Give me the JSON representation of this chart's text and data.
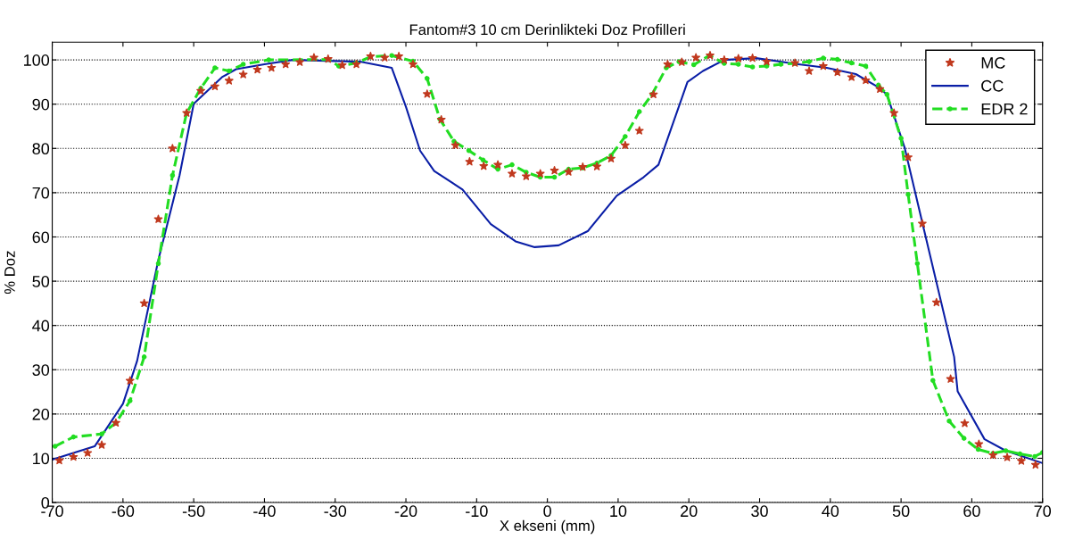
{
  "chart_data": {
    "type": "line",
    "title": "Fantom#3 10 cm Derinlikteki Doz Profilleri",
    "xlabel": "X ekseni (mm)",
    "ylabel": "% Doz",
    "xlim": [
      -70,
      70
    ],
    "ylim": [
      0,
      104
    ],
    "xticks": [
      -70,
      -60,
      -50,
      -40,
      -30,
      -20,
      -10,
      0,
      10,
      20,
      30,
      40,
      50,
      60,
      70
    ],
    "yticks": [
      0,
      10,
      20,
      30,
      40,
      50,
      60,
      70,
      80,
      90,
      100
    ],
    "grid": "y",
    "legend": "top right",
    "series": [
      {
        "name": "MC",
        "type": "scatter",
        "marker": "star",
        "line_style": "none",
        "color": "#c0391e",
        "x": [
          -69,
          -67,
          -65,
          -63,
          -61,
          -59,
          -57,
          -55,
          -53,
          -51,
          -49,
          -47,
          -45,
          -43,
          -41,
          -39,
          -37,
          -35,
          -33,
          -31,
          -29,
          -27,
          -25,
          -23,
          -21,
          -19,
          -17,
          -15,
          -13,
          -11,
          -9,
          -7,
          -5,
          -3,
          -1,
          1,
          3,
          5,
          7,
          9,
          11,
          13,
          15,
          17,
          19,
          21,
          23,
          25,
          27,
          29,
          31,
          35,
          37,
          39,
          41,
          43,
          45,
          47,
          49,
          51,
          53,
          55,
          57,
          59,
          61,
          63,
          65,
          67,
          69
        ],
        "values": [
          9.5,
          10.3,
          11.2,
          13,
          18,
          27.5,
          45,
          64,
          80,
          88,
          93,
          94,
          95.3,
          96.7,
          97.8,
          98.2,
          99,
          99.5,
          100.5,
          100.2,
          98.8,
          99,
          100.8,
          100.5,
          100.8,
          99,
          92.3,
          86.5,
          80.7,
          77,
          76,
          76.3,
          74.3,
          73.7,
          74.3,
          75,
          74.7,
          75.8,
          75.9,
          77.7,
          80.7,
          84,
          92.2,
          99,
          99.5,
          100.5,
          101,
          100,
          100.3,
          100.4,
          99.6,
          99.3,
          97.5,
          98.6,
          97.2,
          96.1,
          95.4,
          93.4,
          88,
          78,
          63,
          45.2,
          27.9,
          17.9,
          13.2,
          10.7,
          10.2,
          9.4,
          8.5
        ]
      },
      {
        "name": "CC",
        "marker": "none",
        "line_style": "solid",
        "color": "#0a1ea6",
        "x": [
          -70,
          -64,
          -60,
          -58,
          -55,
          -52,
          -50,
          -46,
          -44,
          -40,
          -36,
          -26.5,
          -22,
          -20,
          -18,
          -16,
          -12,
          -8,
          -4.5,
          -1.8,
          1.6,
          5.7,
          9.8,
          13.6,
          15.7,
          19.8,
          22,
          25,
          29.5,
          35.5,
          39.5,
          43.6,
          46.6,
          48,
          50.5,
          53.2,
          57.5,
          58,
          61.8,
          64.8,
          70
        ],
        "values": [
          9.7,
          12.7,
          22.3,
          32,
          54.8,
          73.9,
          90.1,
          96.1,
          97.9,
          99,
          100,
          99.6,
          98.2,
          89.4,
          79.5,
          74.9,
          70.7,
          62.9,
          59,
          57.7,
          58.1,
          61.3,
          69.3,
          73.5,
          76.3,
          95,
          97.5,
          100,
          100.4,
          99,
          98.2,
          96.8,
          94,
          92.2,
          80.2,
          61.9,
          32.9,
          25.1,
          14.3,
          11.7,
          8.9
        ]
      },
      {
        "name": "EDR 2",
        "marker": "circle",
        "line_style": "dashed",
        "color": "#22dd22",
        "x": [
          -69.6,
          -67,
          -63,
          -61,
          -59,
          -57,
          -55,
          -53,
          -51,
          -49,
          -47,
          -45,
          -43,
          -39.4,
          -31,
          -29.5,
          -27,
          -25,
          -22,
          -19,
          -17,
          -15.2,
          -13.2,
          -11.1,
          -9.1,
          -7,
          -5,
          -3,
          -1,
          1,
          3,
          5,
          7,
          9,
          11,
          13,
          14.8,
          16.8,
          18.6,
          20.7,
          22.9,
          25,
          27,
          29,
          31,
          33,
          35,
          37,
          39,
          41,
          43,
          45,
          46.8,
          48,
          50,
          51,
          52.3,
          54.5,
          56.8,
          58.9,
          60.9,
          63,
          64.8,
          66.8,
          68.9,
          70
        ],
        "values": [
          12.7,
          14.8,
          15.5,
          18,
          23,
          32.9,
          54,
          73.9,
          88,
          93.6,
          98.2,
          97.5,
          99,
          100,
          100.1,
          98.6,
          99.3,
          100.7,
          101,
          99.7,
          95.8,
          86.6,
          81.6,
          79.5,
          77.4,
          75.3,
          76.3,
          74.6,
          73.5,
          73.5,
          75.3,
          75.6,
          76.7,
          78.4,
          82.7,
          88.3,
          92.2,
          98.2,
          99.6,
          98.9,
          101,
          99.2,
          99,
          98.4,
          98.6,
          99,
          99.2,
          99.6,
          100.4,
          100.1,
          99.3,
          98.6,
          94.3,
          92.2,
          82.3,
          69.6,
          54,
          27.6,
          18.4,
          14.5,
          12,
          11.1,
          11.7,
          11,
          10.4,
          11.3
        ]
      }
    ]
  }
}
